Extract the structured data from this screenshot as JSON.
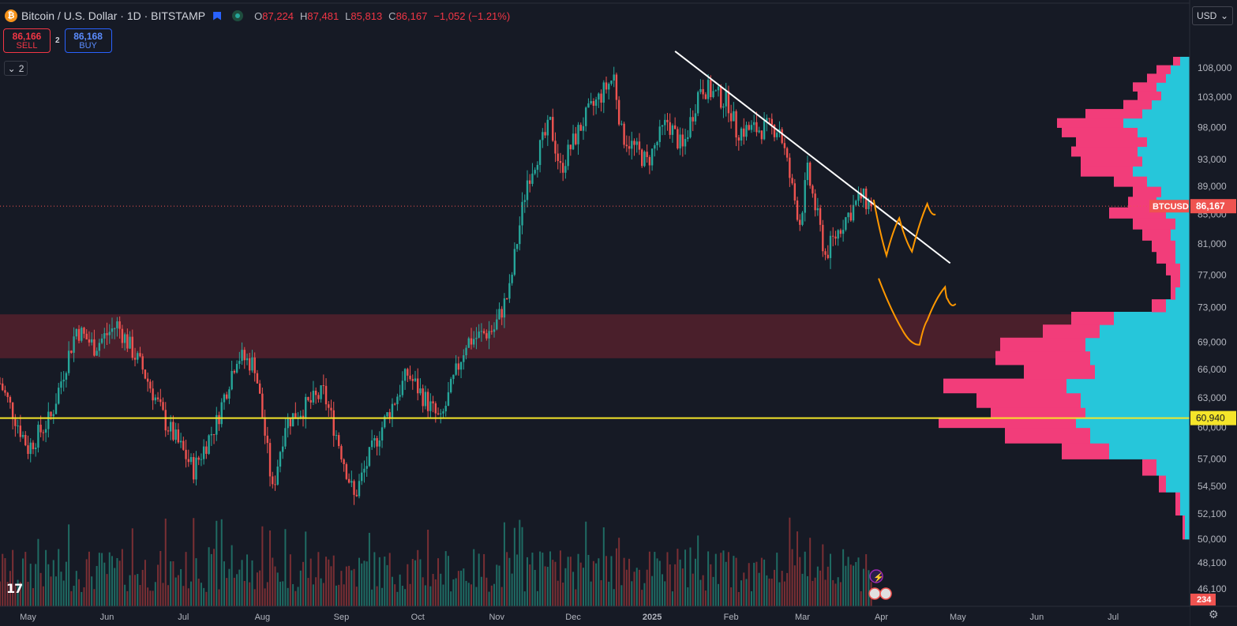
{
  "header": {
    "symbol_icon": "bitcoin-icon",
    "title": "Bitcoin / U.S. Dollar · 1D · BITSTAMP",
    "ohlc": {
      "o_label": "O",
      "o": "87,224",
      "h_label": "H",
      "h": "87,481",
      "l_label": "L",
      "l": "85,813",
      "c_label": "C",
      "c": "86,167",
      "change": "−1,052 (−1.21%)"
    }
  },
  "trade": {
    "sell_price": "86,166",
    "sell_label": "SELL",
    "spread": "2",
    "buy_price": "86,168",
    "buy_label": "BUY"
  },
  "indicators_toggle": "2",
  "currency": "USD",
  "volume_badge": "234",
  "colors": {
    "up": "#26a69a",
    "down": "#ef5350",
    "bg": "#161a25",
    "zone": "#4a1f2b",
    "profile_pink": "#f23d7a",
    "profile_cyan": "#26c6da",
    "level": "#f5e52a",
    "drawing": "#ff9800"
  },
  "chart_data": {
    "type": "candlestick",
    "y_scale": "log",
    "ylim": [
      44800,
      112000
    ],
    "x_range": [
      "2024-04-20",
      "2025-07-31"
    ],
    "y_ticks": [
      "108,000",
      "103,000",
      "98,000",
      "93,000",
      "89,000",
      "85,000",
      "81,000",
      "77,000",
      "73,000",
      "69,000",
      "66,000",
      "63,000",
      "60,000",
      "57,000",
      "54,500",
      "52,100",
      "50,000",
      "48,100",
      "46,100"
    ],
    "x_ticks": [
      {
        "date": "2024-05-01",
        "label": "May"
      },
      {
        "date": "2024-06-01",
        "label": "Jun"
      },
      {
        "date": "2024-07-01",
        "label": "Jul"
      },
      {
        "date": "2024-08-01",
        "label": "Aug"
      },
      {
        "date": "2024-09-01",
        "label": "Sep"
      },
      {
        "date": "2024-10-01",
        "label": "Oct"
      },
      {
        "date": "2024-11-01",
        "label": "Nov"
      },
      {
        "date": "2024-12-01",
        "label": "Dec"
      },
      {
        "date": "2025-01-01",
        "label": "2025"
      },
      {
        "date": "2025-02-01",
        "label": "Feb"
      },
      {
        "date": "2025-03-01",
        "label": "Mar"
      },
      {
        "date": "2025-04-01",
        "label": "Apr"
      },
      {
        "date": "2025-05-01",
        "label": "May"
      },
      {
        "date": "2025-06-01",
        "label": "Jun"
      },
      {
        "date": "2025-07-01",
        "label": "Jul"
      }
    ],
    "price_path": [
      [
        "2024-04-20",
        64500
      ],
      [
        "2024-05-01",
        58000
      ],
      [
        "2024-05-10",
        61000
      ],
      [
        "2024-05-20",
        70500
      ],
      [
        "2024-05-27",
        68500
      ],
      [
        "2024-06-05",
        71000
      ],
      [
        "2024-06-15",
        66000
      ],
      [
        "2024-06-24",
        60500
      ],
      [
        "2024-07-05",
        56000
      ],
      [
        "2024-07-14",
        60500
      ],
      [
        "2024-07-22",
        67500
      ],
      [
        "2024-07-29",
        66500
      ],
      [
        "2024-08-05",
        54000
      ],
      [
        "2024-08-10",
        60500
      ],
      [
        "2024-08-25",
        63500
      ],
      [
        "2024-09-06",
        53500
      ],
      [
        "2024-09-15",
        59000
      ],
      [
        "2024-09-27",
        65500
      ],
      [
        "2024-10-10",
        60500
      ],
      [
        "2024-10-20",
        69000
      ],
      [
        "2024-10-31",
        70500
      ],
      [
        "2024-11-06",
        75000
      ],
      [
        "2024-11-13",
        90000
      ],
      [
        "2024-11-22",
        98500
      ],
      [
        "2024-11-26",
        91500
      ],
      [
        "2024-12-05",
        99000
      ],
      [
        "2024-12-17",
        106500
      ],
      [
        "2024-12-20",
        97000
      ],
      [
        "2024-12-30",
        92500
      ],
      [
        "2025-01-07",
        99000
      ],
      [
        "2025-01-13",
        94500
      ],
      [
        "2025-01-20",
        105000
      ],
      [
        "2025-01-31",
        102000
      ],
      [
        "2025-02-03",
        97500
      ],
      [
        "2025-02-20",
        98000
      ],
      [
        "2025-02-25",
        88500
      ],
      [
        "2025-02-28",
        84000
      ],
      [
        "2025-03-03",
        91000
      ],
      [
        "2025-03-10",
        79500
      ],
      [
        "2025-03-17",
        84000
      ],
      [
        "2025-03-24",
        87500
      ],
      [
        "2025-03-28",
        86167
      ]
    ],
    "last_price": {
      "value": 86167,
      "label": "86,167",
      "tag": "BTCUSD"
    },
    "horizontal_level": {
      "value": 60940,
      "label": "60,940"
    },
    "zone": {
      "from": 67200,
      "to": 72200
    },
    "trendline": {
      "from": {
        "date": "2025-01-10",
        "price": 111000
      },
      "to": {
        "date": "2025-04-28",
        "price": 78500
      }
    },
    "volume_profile": {
      "levels": [
        50000,
        52000,
        54000,
        55500,
        57000,
        58500,
        60000,
        61000,
        62000,
        63500,
        65000,
        66500,
        68000,
        69500,
        71000,
        72500,
        74000,
        75500,
        77000,
        78500,
        80000,
        81500,
        83000,
        84500,
        86000,
        87500,
        89000,
        90500,
        92000,
        93500,
        95000,
        96500,
        98000,
        99500,
        101000,
        102500,
        104000,
        105500,
        107000,
        108500,
        110000
      ],
      "up": [
        0.02,
        0.04,
        0.1,
        0.14,
        0.34,
        0.42,
        0.48,
        0.44,
        0.46,
        0.52,
        0.4,
        0.42,
        0.44,
        0.38,
        0.32,
        0.1,
        0.06,
        0.04,
        0.04,
        0.06,
        0.06,
        0.08,
        0.06,
        0.1,
        0.14,
        0.12,
        0.18,
        0.24,
        0.2,
        0.22,
        0.18,
        0.22,
        0.28,
        0.2,
        0.16,
        0.12,
        0.14,
        0.1,
        0.08,
        0.04,
        0.02
      ],
      "down": [
        0.01,
        0.02,
        0.03,
        0.06,
        0.2,
        0.36,
        0.58,
        0.4,
        0.44,
        0.52,
        0.3,
        0.4,
        0.36,
        0.24,
        0.18,
        0.06,
        0.02,
        0.04,
        0.06,
        0.08,
        0.1,
        0.12,
        0.18,
        0.24,
        0.12,
        0.12,
        0.14,
        0.22,
        0.26,
        0.28,
        0.3,
        0.32,
        0.28,
        0.24,
        0.12,
        0.1,
        0.1,
        0.08,
        0.06,
        0.03,
        0.01
      ]
    },
    "drawings": [
      {
        "name": "orange-path-upper",
        "points": [
          [
            "2025-03-29",
            87000
          ],
          [
            "2025-04-03",
            79500
          ],
          [
            "2025-04-08",
            84500
          ],
          [
            "2025-04-13",
            80000
          ],
          [
            "2025-04-19",
            86500
          ],
          [
            "2025-04-22",
            85000
          ]
        ]
      },
      {
        "name": "orange-path-lower",
        "points": [
          [
            "2025-03-31",
            76500
          ],
          [
            "2025-04-10",
            70000
          ],
          [
            "2025-04-16",
            68700
          ],
          [
            "2025-04-19",
            71500
          ],
          [
            "2025-04-26",
            75500
          ],
          [
            "2025-04-27",
            74000
          ],
          [
            "2025-04-30",
            73400
          ]
        ]
      }
    ]
  }
}
